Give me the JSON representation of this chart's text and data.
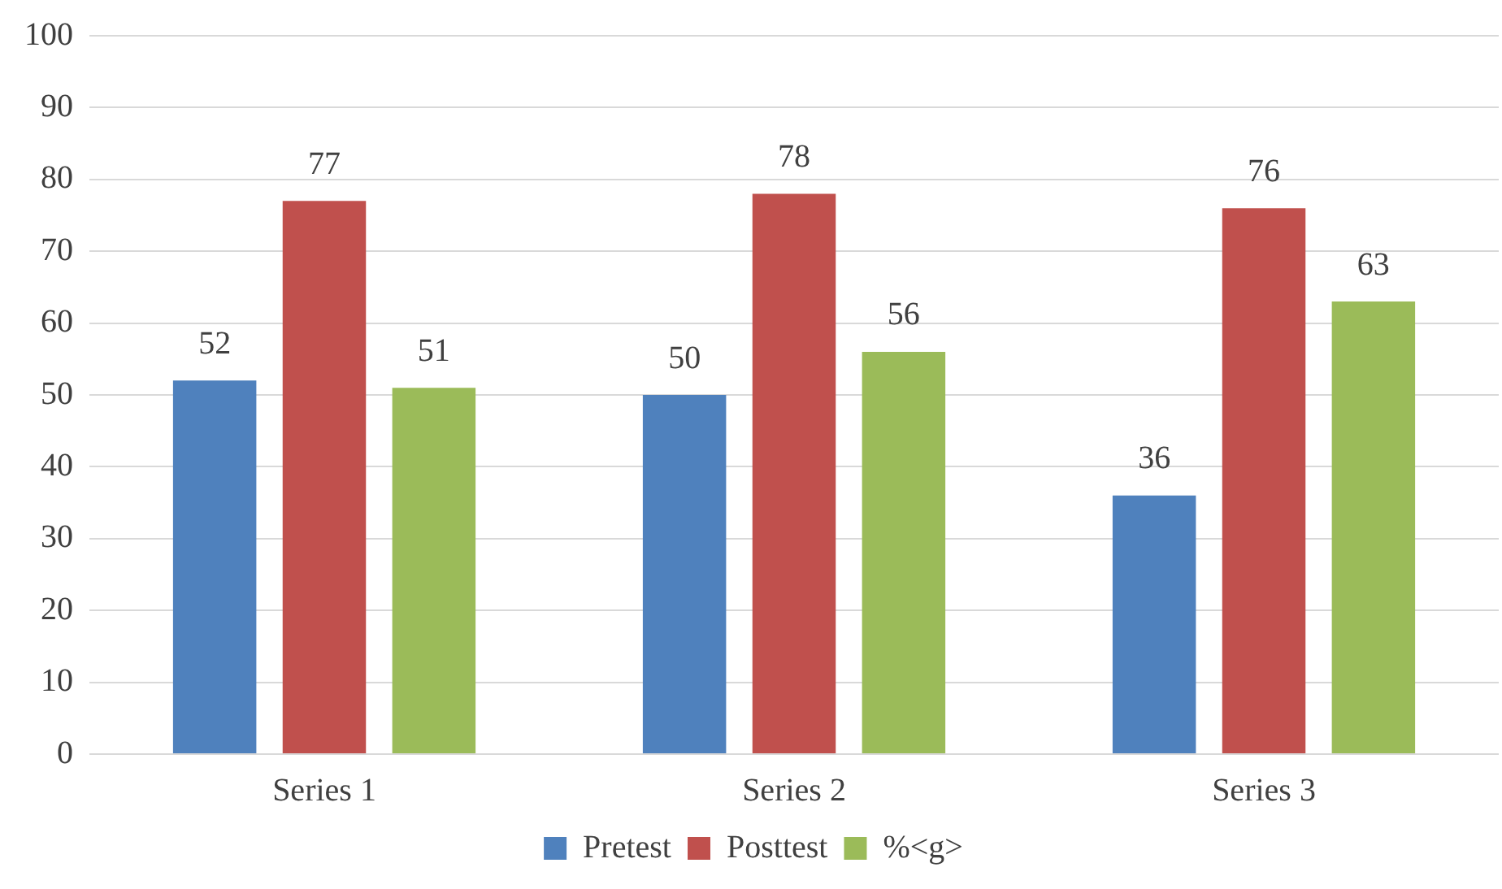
{
  "chart_data": {
    "type": "bar",
    "categories": [
      "Series 1",
      "Series 2",
      "Series 3"
    ],
    "series": [
      {
        "name": "Pretest",
        "color": "#4f81bd",
        "values": [
          52,
          50,
          36
        ]
      },
      {
        "name": "Posttest",
        "color": "#c0504d",
        "values": [
          77,
          78,
          76
        ]
      },
      {
        "name": "%<g>",
        "color": "#9bbb59",
        "values": [
          51,
          56,
          63
        ]
      }
    ],
    "ylim": [
      0,
      100
    ],
    "yticks": [
      0,
      10,
      20,
      30,
      40,
      50,
      60,
      70,
      80,
      90,
      100
    ],
    "grid": "y",
    "legend": "bottom",
    "data_labels": true
  }
}
